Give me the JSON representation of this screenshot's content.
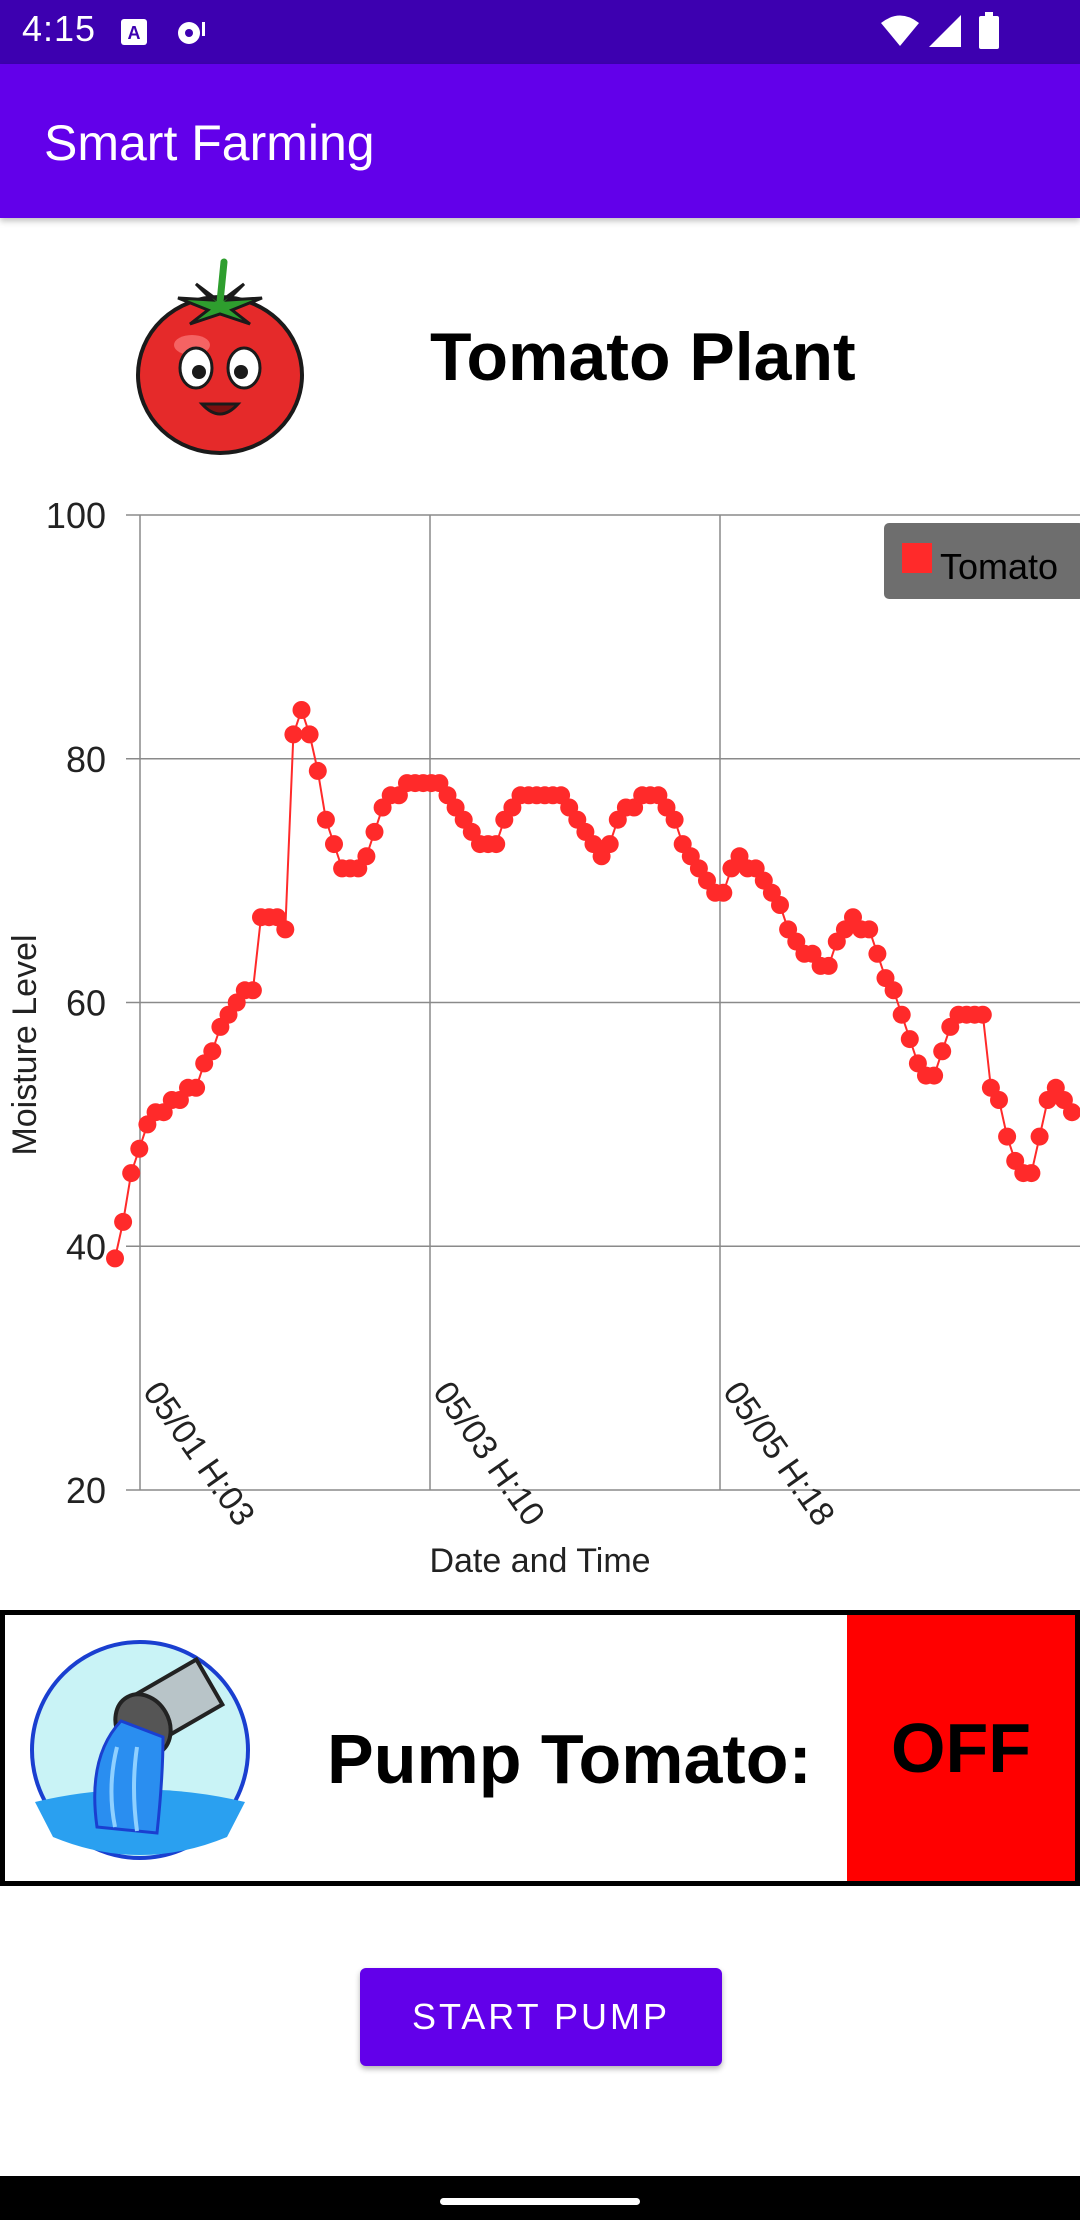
{
  "status_bar": {
    "time": "4:15",
    "icons": [
      "a-notification-icon",
      "media-notification-icon",
      "wifi-icon",
      "signal-icon",
      "battery-icon"
    ]
  },
  "app_bar": {
    "title": "Smart Farming"
  },
  "plant": {
    "title": "Tomato Plant",
    "logo_icon": "tomato-mascot-icon"
  },
  "chart_data": {
    "type": "line",
    "title": "",
    "xlabel": "Date and Time",
    "ylabel": "Moisture Level",
    "ylim": [
      20,
      100
    ],
    "yticks": [
      20,
      40,
      60,
      80,
      100
    ],
    "xticks": [
      "05/01 H:03",
      "05/03 H:10",
      "05/05 H:18"
    ],
    "grid": true,
    "legend": "top-right",
    "series": [
      {
        "name": "Tomato",
        "color": "#ff2a2a",
        "values": [
          39,
          42,
          46,
          48,
          50,
          51,
          51,
          52,
          52,
          53,
          53,
          55,
          56,
          58,
          59,
          60,
          61,
          61,
          67,
          67,
          67,
          66,
          82,
          84,
          82,
          79,
          75,
          73,
          71,
          71,
          71,
          72,
          74,
          76,
          77,
          77,
          78,
          78,
          78,
          78,
          78,
          77,
          76,
          75,
          74,
          73,
          73,
          73,
          75,
          76,
          77,
          77,
          77,
          77,
          77,
          77,
          76,
          75,
          74,
          73,
          72,
          73,
          75,
          76,
          76,
          77,
          77,
          77,
          76,
          75,
          73,
          72,
          71,
          70,
          69,
          69,
          71,
          72,
          71,
          71,
          70,
          69,
          68,
          66,
          65,
          64,
          64,
          63,
          63,
          65,
          66,
          67,
          66,
          66,
          64,
          62,
          61,
          59,
          57,
          55,
          54,
          54,
          56,
          58,
          59,
          59,
          59,
          59,
          53,
          52,
          49,
          47,
          46,
          46,
          49,
          52,
          53,
          52,
          51
        ]
      }
    ]
  },
  "pump": {
    "label": "Pump Tomato:",
    "state": "OFF",
    "state_color": "#ff0000",
    "icon": "water-pipe-icon"
  },
  "actions": {
    "start_pump_label": "START PUMP"
  }
}
